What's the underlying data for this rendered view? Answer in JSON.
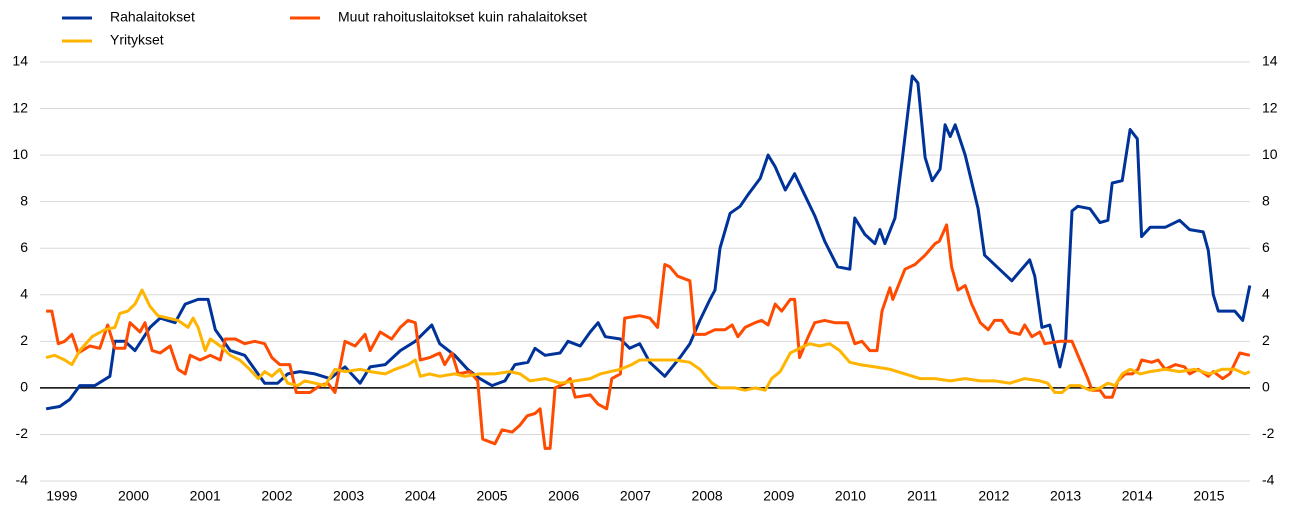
{
  "chart_data": {
    "type": "line",
    "xlim": [
      1999,
      2016.1
    ],
    "xticks": [
      {
        "value": 1999.5,
        "label": "1999"
      },
      {
        "value": 2000.5,
        "label": "2000"
      },
      {
        "value": 2001.5,
        "label": "2001"
      },
      {
        "value": 2002.5,
        "label": "2002"
      },
      {
        "value": 2003.5,
        "label": "2003"
      },
      {
        "value": 2004.5,
        "label": "2004"
      },
      {
        "value": 2005.5,
        "label": "2005"
      },
      {
        "value": 2006.5,
        "label": "2006"
      },
      {
        "value": 2007.5,
        "label": "2007"
      },
      {
        "value": 2008.5,
        "label": "2008"
      },
      {
        "value": 2009.5,
        "label": "2009"
      },
      {
        "value": 2010.5,
        "label": "2010"
      },
      {
        "value": 2011.5,
        "label": "2011"
      },
      {
        "value": 2012.5,
        "label": "2012"
      },
      {
        "value": 2013.5,
        "label": "2013"
      },
      {
        "value": 2014.5,
        "label": "2014"
      },
      {
        "value": 2015.5,
        "label": "2015"
      }
    ],
    "ylim": [
      -4,
      14
    ],
    "yticks": [
      -4,
      -2,
      0,
      2,
      4,
      6,
      8,
      10,
      12,
      14
    ],
    "grid": true,
    "legend": "top-left",
    "series": [
      {
        "name": "Rahalaitokset",
        "color": "#003399",
        "x": [
          1999.28,
          1999.47,
          1999.61,
          1999.75,
          1999.96,
          2000.17,
          2000.24,
          2000.38,
          2000.52,
          2000.73,
          2000.87,
          2001.08,
          2001.22,
          2001.4,
          2001.54,
          2001.64,
          2001.85,
          2002.05,
          2002.19,
          2002.33,
          2002.51,
          2002.65,
          2002.82,
          2003.03,
          2003.24,
          2003.45,
          2003.66,
          2003.8,
          2004.01,
          2004.22,
          2004.43,
          2004.66,
          2004.77,
          2004.98,
          2005.16,
          2005.33,
          2005.5,
          2005.68,
          2005.82,
          2006.0,
          2006.1,
          2006.24,
          2006.45,
          2006.56,
          2006.73,
          2006.87,
          2006.98,
          2007.08,
          2007.29,
          2007.42,
          2007.56,
          2007.7,
          2007.91,
          2008.12,
          2008.26,
          2008.4,
          2008.54,
          2008.61,
          2008.68,
          2008.82,
          2008.96,
          2009.07,
          2009.24,
          2009.35,
          2009.45,
          2009.59,
          2009.72,
          2009.86,
          2010.0,
          2010.14,
          2010.32,
          2010.49,
          2010.56,
          2010.7,
          2010.84,
          2010.91,
          2010.98,
          2011.12,
          2011.23,
          2011.36,
          2011.44,
          2011.54,
          2011.64,
          2011.75,
          2011.82,
          2011.89,
          2011.96,
          2012.1,
          2012.28,
          2012.37,
          2012.75,
          2012.86,
          2013.0,
          2013.07,
          2013.17,
          2013.28,
          2013.35,
          2013.42,
          2013.5,
          2013.59,
          2013.67,
          2013.84,
          2013.98,
          2014.09,
          2014.15,
          2014.29,
          2014.4,
          2014.5,
          2014.56,
          2014.68,
          2014.89,
          2015.09,
          2015.23,
          2015.42,
          2015.49,
          2015.56,
          2015.63,
          2015.86,
          2015.97,
          2016.07
        ],
        "values": [
          -0.9,
          -0.8,
          -0.5,
          0.1,
          0.1,
          0.5,
          2.0,
          2.0,
          1.6,
          2.6,
          3.0,
          2.8,
          3.6,
          3.8,
          3.8,
          2.5,
          1.6,
          1.4,
          0.8,
          0.2,
          0.2,
          0.6,
          0.7,
          0.6,
          0.4,
          0.9,
          0.2,
          0.9,
          1.0,
          1.6,
          2.0,
          2.7,
          1.9,
          1.4,
          0.8,
          0.4,
          0.1,
          0.3,
          1.0,
          1.1,
          1.7,
          1.4,
          1.5,
          2.0,
          1.8,
          2.4,
          2.8,
          2.2,
          2.1,
          1.7,
          1.9,
          1.1,
          0.5,
          1.3,
          1.9,
          2.9,
          3.8,
          4.2,
          6.0,
          7.5,
          7.8,
          8.3,
          9.0,
          10.0,
          9.5,
          8.5,
          9.2,
          8.3,
          7.4,
          6.3,
          5.2,
          5.1,
          7.3,
          6.6,
          6.2,
          6.8,
          6.2,
          7.3,
          10.0,
          13.4,
          13.1,
          9.9,
          8.9,
          9.4,
          11.3,
          10.8,
          11.3,
          10.0,
          7.7,
          5.7,
          4.6,
          5.0,
          5.5,
          4.8,
          2.6,
          2.7,
          1.8,
          0.9,
          2.0,
          7.6,
          7.8,
          7.7,
          7.1,
          7.2,
          8.8,
          8.9,
          11.1,
          10.7,
          6.5,
          6.9,
          6.9,
          7.2,
          6.8,
          6.7,
          5.9,
          4.0,
          3.3,
          3.3,
          2.9,
          4.4
        ]
      },
      {
        "name": "Muut rahoituslaitokset kuin rahalaitokset",
        "color": "#ff4b00",
        "x": [
          1999.28,
          1999.36,
          1999.45,
          1999.54,
          1999.64,
          1999.73,
          1999.89,
          2000.03,
          2000.14,
          2000.24,
          2000.38,
          2000.45,
          2000.59,
          2000.66,
          2000.76,
          2000.87,
          2001.01,
          2001.12,
          2001.22,
          2001.29,
          2001.43,
          2001.57,
          2001.71,
          2001.78,
          2001.92,
          2002.05,
          2002.19,
          2002.33,
          2002.43,
          2002.54,
          2002.68,
          2002.77,
          2002.96,
          2003.1,
          2003.21,
          2003.31,
          2003.45,
          2003.59,
          2003.73,
          2003.8,
          2003.94,
          2004.1,
          2004.22,
          2004.33,
          2004.43,
          2004.5,
          2004.63,
          2004.77,
          2004.84,
          2004.94,
          2005.03,
          2005.19,
          2005.3,
          2005.37,
          2005.54,
          2005.64,
          2005.78,
          2005.89,
          2005.99,
          2006.1,
          2006.17,
          2006.24,
          2006.31,
          2006.38,
          2006.52,
          2006.59,
          2006.66,
          2006.87,
          2006.98,
          2007.1,
          2007.17,
          2007.29,
          2007.35,
          2007.56,
          2007.7,
          2007.81,
          2007.91,
          2007.98,
          2008.09,
          2008.26,
          2008.33,
          2008.47,
          2008.61,
          2008.75,
          2008.85,
          2008.93,
          2009.03,
          2009.17,
          2009.26,
          2009.35,
          2009.45,
          2009.54,
          2009.66,
          2009.72,
          2009.79,
          2009.91,
          2010.0,
          2010.14,
          2010.28,
          2010.46,
          2010.56,
          2010.66,
          2010.77,
          2010.87,
          2010.94,
          2011.05,
          2011.09,
          2011.26,
          2011.4,
          2011.54,
          2011.68,
          2011.74,
          2011.84,
          2011.91,
          2012.0,
          2012.1,
          2012.19,
          2012.31,
          2012.42,
          2012.51,
          2012.61,
          2012.72,
          2012.86,
          2012.93,
          2013.03,
          2013.14,
          2013.21,
          2013.42,
          2013.59,
          2013.7,
          2013.81,
          2013.87,
          2013.98,
          2014.05,
          2014.15,
          2014.23,
          2014.33,
          2014.43,
          2014.51,
          2014.56,
          2014.7,
          2014.79,
          2014.89,
          2015.03,
          2015.16,
          2015.23,
          2015.35,
          2015.49,
          2015.56,
          2015.69,
          2015.79,
          2015.93,
          2016.07
        ],
        "values": [
          3.3,
          3.3,
          1.9,
          2.0,
          2.3,
          1.5,
          1.8,
          1.7,
          2.7,
          1.7,
          1.7,
          2.8,
          2.4,
          2.8,
          1.6,
          1.5,
          1.8,
          0.8,
          0.6,
          1.4,
          1.2,
          1.4,
          1.2,
          2.1,
          2.1,
          1.9,
          2.0,
          1.9,
          1.3,
          1.0,
          1.0,
          -0.2,
          -0.2,
          0.1,
          0.2,
          -0.2,
          2.0,
          1.8,
          2.3,
          1.6,
          2.4,
          2.1,
          2.6,
          2.9,
          2.8,
          1.2,
          1.3,
          1.5,
          1.0,
          1.5,
          0.6,
          0.7,
          0.3,
          -2.2,
          -2.4,
          -1.8,
          -1.9,
          -1.6,
          -1.2,
          -1.1,
          -0.9,
          -2.6,
          -2.6,
          0.0,
          0.2,
          0.4,
          -0.4,
          -0.3,
          -0.7,
          -0.9,
          0.4,
          0.6,
          3.0,
          3.1,
          3.0,
          2.6,
          5.3,
          5.2,
          4.8,
          4.6,
          2.3,
          2.3,
          2.5,
          2.5,
          2.7,
          2.2,
          2.6,
          2.8,
          2.9,
          2.7,
          3.6,
          3.3,
          3.8,
          3.8,
          1.3,
          2.2,
          2.8,
          2.9,
          2.8,
          2.8,
          1.9,
          2.0,
          1.6,
          1.6,
          3.3,
          4.3,
          3.8,
          5.1,
          5.3,
          5.7,
          6.2,
          6.3,
          7.0,
          5.2,
          4.2,
          4.4,
          3.6,
          2.8,
          2.5,
          2.9,
          2.9,
          2.4,
          2.3,
          2.7,
          2.2,
          2.4,
          1.9,
          2.0,
          2.0,
          1.2,
          0.4,
          -0.1,
          -0.1,
          -0.4,
          -0.4,
          0.3,
          0.6,
          0.6,
          0.8,
          1.2,
          1.1,
          1.2,
          0.8,
          1.0,
          0.9,
          0.6,
          0.8,
          0.5,
          0.7,
          0.4,
          0.6,
          1.5,
          1.4
        ]
      },
      {
        "name": "Yritykset",
        "color": "#ffb400",
        "x": [
          1999.28,
          1999.4,
          1999.54,
          1999.64,
          1999.75,
          1999.92,
          2000.1,
          2000.24,
          2000.31,
          2000.42,
          2000.52,
          2000.62,
          2000.73,
          2000.84,
          2000.98,
          2001.12,
          2001.26,
          2001.33,
          2001.4,
          2001.5,
          2001.57,
          2001.71,
          2001.85,
          2001.98,
          2002.12,
          2002.24,
          2002.33,
          2002.43,
          2002.54,
          2002.65,
          2002.79,
          2002.89,
          2003.03,
          2003.17,
          2003.31,
          2003.45,
          2003.66,
          2003.8,
          2004.01,
          2004.15,
          2004.33,
          2004.43,
          2004.5,
          2004.63,
          2004.77,
          2004.98,
          2005.12,
          2005.33,
          2005.54,
          2005.75,
          2005.89,
          2006.03,
          2006.24,
          2006.45,
          2006.66,
          2006.87,
          2007.01,
          2007.15,
          2007.29,
          2007.45,
          2007.56,
          2007.7,
          2007.84,
          2008.05,
          2008.26,
          2008.4,
          2008.57,
          2008.68,
          2008.89,
          2009.03,
          2009.17,
          2009.31,
          2009.4,
          2009.52,
          2009.66,
          2009.79,
          2009.93,
          2010.07,
          2010.21,
          2010.35,
          2010.49,
          2010.63,
          2010.84,
          2011.05,
          2011.26,
          2011.47,
          2011.68,
          2011.89,
          2012.1,
          2012.31,
          2012.51,
          2012.72,
          2012.93,
          2013.14,
          2013.25,
          2013.35,
          2013.45,
          2013.56,
          2013.7,
          2013.84,
          2013.98,
          2014.09,
          2014.19,
          2014.29,
          2014.4,
          2014.54,
          2014.68,
          2014.89,
          2015.09,
          2015.3,
          2015.51,
          2015.68,
          2015.86,
          2016.0,
          2016.07
        ],
        "values": [
          1.3,
          1.4,
          1.2,
          1.0,
          1.6,
          2.2,
          2.5,
          2.6,
          3.2,
          3.3,
          3.6,
          4.2,
          3.5,
          3.1,
          3.0,
          2.9,
          2.6,
          3.0,
          2.6,
          1.6,
          2.1,
          1.8,
          1.4,
          1.2,
          0.8,
          0.4,
          0.7,
          0.5,
          0.8,
          0.2,
          0.1,
          0.3,
          0.2,
          0.1,
          0.8,
          0.7,
          0.8,
          0.7,
          0.6,
          0.8,
          1.0,
          1.2,
          0.5,
          0.6,
          0.5,
          0.6,
          0.5,
          0.6,
          0.6,
          0.7,
          0.6,
          0.3,
          0.4,
          0.2,
          0.3,
          0.4,
          0.6,
          0.7,
          0.8,
          1.0,
          1.2,
          1.2,
          1.2,
          1.2,
          1.1,
          0.8,
          0.2,
          0.0,
          0.0,
          -0.1,
          0.0,
          -0.1,
          0.4,
          0.7,
          1.5,
          1.7,
          1.9,
          1.8,
          1.9,
          1.6,
          1.1,
          1.0,
          0.9,
          0.8,
          0.6,
          0.4,
          0.4,
          0.3,
          0.4,
          0.3,
          0.3,
          0.2,
          0.4,
          0.3,
          0.2,
          -0.2,
          -0.2,
          0.1,
          0.1,
          -0.1,
          0.0,
          0.2,
          0.1,
          0.6,
          0.8,
          0.6,
          0.7,
          0.8,
          0.7,
          0.8,
          0.6,
          0.8,
          0.8,
          0.6,
          0.7
        ]
      }
    ]
  }
}
